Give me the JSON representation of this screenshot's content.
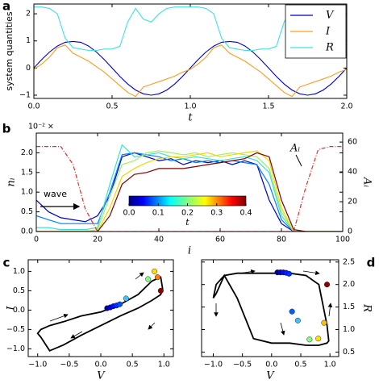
{
  "chart_data": [
    {
      "type": "line",
      "label": "a",
      "ylabel": "system quantities",
      "xlabel": "t",
      "x": [
        0,
        0.05,
        0.1,
        0.15,
        0.2,
        0.25,
        0.3,
        0.35,
        0.4,
        0.45,
        0.5,
        0.55,
        0.6,
        0.65,
        0.7,
        0.75,
        0.8,
        0.85,
        0.9,
        0.95,
        1.0,
        1.05,
        1.1,
        1.15,
        1.2,
        1.25,
        1.3,
        1.35,
        1.4,
        1.45,
        1.5,
        1.55,
        1.6,
        1.65,
        1.7,
        1.75,
        1.8,
        1.85,
        1.9,
        1.95,
        2.0
      ],
      "series": [
        {
          "name": "V",
          "color": "#0000cc",
          "values": [
            0,
            0.31,
            0.59,
            0.81,
            0.95,
            0.98,
            0.95,
            0.81,
            0.59,
            0.31,
            0,
            -0.31,
            -0.59,
            -0.81,
            -0.95,
            -1.0,
            -0.95,
            -0.81,
            -0.59,
            -0.31,
            0,
            0.31,
            0.59,
            0.81,
            0.95,
            0.98,
            0.95,
            0.81,
            0.59,
            0.31,
            0,
            -0.31,
            -0.59,
            -0.81,
            -0.95,
            -1.0,
            -0.95,
            -0.81,
            -0.59,
            -0.31,
            0
          ]
        },
        {
          "name": "I",
          "color": "#f5a020",
          "values": [
            -0.05,
            0.15,
            0.4,
            0.75,
            0.85,
            0.55,
            0.4,
            0.25,
            0.05,
            -0.15,
            -0.4,
            -0.65,
            -0.9,
            -1.05,
            -0.7,
            -0.6,
            -0.5,
            -0.4,
            -0.3,
            -0.15,
            -0.05,
            0.15,
            0.4,
            0.75,
            0.85,
            0.55,
            0.4,
            0.25,
            0.05,
            -0.15,
            -0.4,
            -0.65,
            -0.9,
            -1.05,
            -0.7,
            -0.6,
            -0.5,
            -0.4,
            -0.3,
            -0.15,
            -0.05
          ]
        },
        {
          "name": "R",
          "color": "#40e0e0",
          "values": [
            2.25,
            2.25,
            2.2,
            2.0,
            1.1,
            0.75,
            0.7,
            0.65,
            0.65,
            0.7,
            0.7,
            0.8,
            1.7,
            2.2,
            1.8,
            1.7,
            2.0,
            2.2,
            2.25,
            2.25,
            2.25,
            2.25,
            2.2,
            2.0,
            1.1,
            0.75,
            0.7,
            0.65,
            0.65,
            0.7,
            0.7,
            0.8,
            1.7,
            2.2,
            1.8,
            1.7,
            2.0,
            2.2,
            2.25,
            2.25,
            2.25
          ]
        }
      ],
      "xlim": [
        0,
        2
      ],
      "ylim": [
        -1.12,
        2.36
      ],
      "xticks": [
        {
          "value": 0,
          "label": "0.0"
        },
        {
          "value": 0.5,
          "label": "0.5"
        },
        {
          "value": 1,
          "label": "1.0"
        },
        {
          "value": 1.5,
          "label": "1.5"
        },
        {
          "value": 2,
          "label": "2.0"
        }
      ],
      "yticks": [
        {
          "value": -1,
          "label": "−1"
        },
        0,
        1,
        2
      ],
      "legend": "upper right"
    },
    {
      "type": "line",
      "label": "b",
      "ylabel": "nᵢ",
      "xlabel": "i",
      "y2label": "Aᵢ",
      "multiplier": "10⁻² ×",
      "x": [
        0,
        4,
        8,
        12,
        16,
        20,
        24,
        28,
        32,
        36,
        40,
        44,
        48,
        52,
        56,
        60,
        64,
        68,
        72,
        76,
        80,
        84,
        88,
        92,
        96,
        100
      ],
      "series": [
        {
          "color": "#0000cc",
          "values": [
            0.8,
            0.5,
            0.35,
            0.3,
            0.25,
            0.4,
            0.9,
            1.9,
            2.0,
            1.9,
            1.8,
            1.85,
            1.7,
            1.8,
            1.75,
            1.8,
            1.7,
            1.8,
            1.7,
            0.8,
            0.2,
            0,
            0,
            0,
            0,
            0
          ]
        },
        {
          "color": "#0080ff",
          "values": [
            0.4,
            0.3,
            0.2,
            0.2,
            0.2,
            0.2,
            1.0,
            1.95,
            2.0,
            1.95,
            1.9,
            1.8,
            1.85,
            1.75,
            1.8,
            1.75,
            1.8,
            1.75,
            1.7,
            1.2,
            0.3,
            0,
            0,
            0,
            0,
            0
          ]
        },
        {
          "color": "#40e0d0",
          "values": [
            0.1,
            0.1,
            0.05,
            0.05,
            0.05,
            0.1,
            1.2,
            2.2,
            1.9,
            1.95,
            2.0,
            1.9,
            1.85,
            1.9,
            1.85,
            1.8,
            1.85,
            1.9,
            1.8,
            1.5,
            0.4,
            0,
            0,
            0,
            0,
            0
          ]
        },
        {
          "color": "#a0f060",
          "values": [
            0,
            0,
            0,
            0,
            0,
            0.05,
            0.9,
            1.7,
            1.8,
            2.0,
            2.05,
            2.0,
            1.95,
            2.0,
            1.9,
            1.95,
            2.0,
            1.95,
            1.9,
            1.6,
            0.5,
            0,
            0,
            0,
            0,
            0
          ]
        },
        {
          "color": "#f0d800",
          "values": [
            0,
            0,
            0,
            0,
            0,
            0,
            0.6,
            1.4,
            1.6,
            1.75,
            1.85,
            1.9,
            1.9,
            1.95,
            2.0,
            1.9,
            1.95,
            2.0,
            2.05,
            1.8,
            0.6,
            0,
            0,
            0,
            0,
            0
          ]
        },
        {
          "color": "#800000",
          "values": [
            0,
            0,
            0,
            0,
            0,
            0,
            0.4,
            1.2,
            1.45,
            1.5,
            1.6,
            1.6,
            1.6,
            1.65,
            1.7,
            1.75,
            1.8,
            1.85,
            2.0,
            1.9,
            0.8,
            0.05,
            0,
            0,
            0,
            0
          ]
        },
        {
          "color": "#e03030",
          "dash": "dashdot",
          "axis": "y2",
          "values": [
            57,
            57,
            57,
            45,
            15,
            0,
            0,
            0,
            0,
            0,
            0,
            0,
            0,
            0,
            0,
            0,
            0,
            0,
            0,
            0,
            0,
            0,
            30,
            55,
            57,
            57
          ]
        }
      ],
      "xlim": [
        0,
        100
      ],
      "ylim": [
        0,
        2.5
      ],
      "y2lim": [
        0,
        66
      ],
      "xticks": [
        0,
        20,
        40,
        60,
        80,
        100
      ],
      "yticks": [
        {
          "value": 0,
          "label": "0.0"
        },
        {
          "value": 0.5,
          "label": "0.5"
        },
        {
          "value": 1,
          "label": "1.0"
        },
        {
          "value": 1.5,
          "label": "1.5"
        },
        {
          "value": 2,
          "label": "2.0"
        }
      ],
      "y2ticks": [
        0,
        20,
        40,
        60
      ],
      "annotations": [
        "wave",
        "Aᵢ"
      ],
      "colorbar": {
        "colormap": "jet",
        "label": "t",
        "lim": [
          0,
          0.4
        ],
        "ticks": [
          {
            "value": 0,
            "label": "0.0"
          },
          {
            "value": 0.1,
            "label": "0.1"
          },
          {
            "value": 0.2,
            "label": "0.2"
          },
          {
            "value": 0.3,
            "label": "0.3"
          },
          {
            "value": 0.4,
            "label": "0.4"
          }
        ]
      }
    },
    {
      "type": "scatter",
      "label": "c",
      "ylabel": "I",
      "xlabel": "V",
      "x": [
        0.1,
        0.15,
        0.2,
        0.25,
        0.3,
        0.4,
        0.75,
        0.85,
        0.9,
        0.95
      ],
      "values": [
        0.05,
        0.07,
        0.1,
        0.12,
        0.15,
        0.3,
        0.8,
        1.0,
        0.85,
        0.5
      ],
      "colors": [
        "#0000aa",
        "#0000cc",
        "#0010ff",
        "#0030ff",
        "#0050ff",
        "#40c0ff",
        "#80ff80",
        "#ffe000",
        "#ff8000",
        "#900000"
      ],
      "xlim": [
        -1.15,
        1.15
      ],
      "ylim": [
        -1.2,
        1.3
      ],
      "xticks": [
        {
          "value": -1,
          "label": "−1.0"
        },
        {
          "value": -0.5,
          "label": "−0.5"
        },
        {
          "value": 0,
          "label": "0.0"
        },
        {
          "value": 0.5,
          "label": "0.5"
        },
        {
          "value": 1,
          "label": "1.0"
        }
      ],
      "yticks": [
        {
          "value": -1,
          "label": "−1.0"
        },
        {
          "value": -0.5,
          "label": "−0.5"
        },
        {
          "value": 0,
          "label": "0.0"
        },
        {
          "value": 0.5,
          "label": "0.5"
        },
        {
          "value": 1,
          "label": "1.0"
        }
      ]
    },
    {
      "type": "scatter",
      "label": "d",
      "ylabel": "R",
      "xlabel": "V",
      "y_axis_side": "right",
      "x": [
        0.1,
        0.15,
        0.2,
        0.25,
        0.3,
        0.35,
        0.45,
        0.65,
        0.8,
        0.9,
        0.95
      ],
      "values": [
        2.27,
        2.27,
        2.27,
        2.26,
        2.24,
        1.4,
        1.2,
        0.78,
        0.8,
        1.15,
        2.0
      ],
      "colors": [
        "#0000aa",
        "#0000cc",
        "#0010ff",
        "#0020ff",
        "#0030ff",
        "#0060ff",
        "#40c0ff",
        "#80ff80",
        "#ffe000",
        "#ffc000",
        "#900000"
      ],
      "xlim": [
        -1.2,
        1.15
      ],
      "ylim": [
        0.4,
        2.55
      ],
      "xticks": [
        {
          "value": -1,
          "label": "−1.0"
        },
        {
          "value": -0.5,
          "label": "−0.5"
        },
        {
          "value": 0,
          "label": "0.0"
        },
        {
          "value": 0.5,
          "label": "0.5"
        },
        {
          "value": 1,
          "label": "1.0"
        }
      ],
      "yticks": [
        0.5,
        {
          "value": 1,
          "label": "1.0"
        },
        1.5,
        {
          "value": 2,
          "label": "2.0"
        },
        2.5
      ]
    }
  ]
}
